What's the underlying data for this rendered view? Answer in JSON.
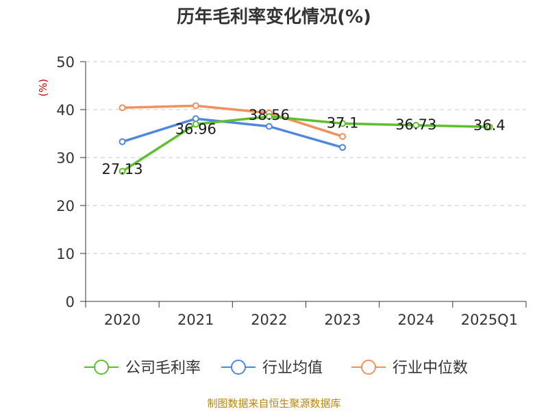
{
  "chart_data": {
    "type": "line",
    "title": "历年毛利率变化情况(%)",
    "ylabel": "(%)",
    "xlabel": "",
    "categories": [
      "2020",
      "2021",
      "2022",
      "2023",
      "2024",
      "2025Q1"
    ],
    "ylim": [
      0,
      50
    ],
    "yticks": [
      0,
      10,
      20,
      30,
      40,
      50
    ],
    "grid": true,
    "legend_position": "bottom",
    "series": [
      {
        "name": "公司毛利率",
        "color": "#5cc02b",
        "values": [
          27.13,
          36.96,
          38.56,
          37.1,
          36.73,
          36.4
        ],
        "data_labels": [
          "27.13",
          "36.96",
          "38.56",
          "37.1",
          "36.73",
          "36.4"
        ]
      },
      {
        "name": "行业均值",
        "color": "#4f86e0",
        "values": [
          33.3,
          38.1,
          36.5,
          32.1,
          null,
          null
        ]
      },
      {
        "name": "行业中位数",
        "color": "#f2905d",
        "values": [
          40.4,
          40.8,
          39.3,
          34.4,
          null,
          null
        ]
      }
    ]
  },
  "source": "制图数据来自恒生聚源数据库"
}
